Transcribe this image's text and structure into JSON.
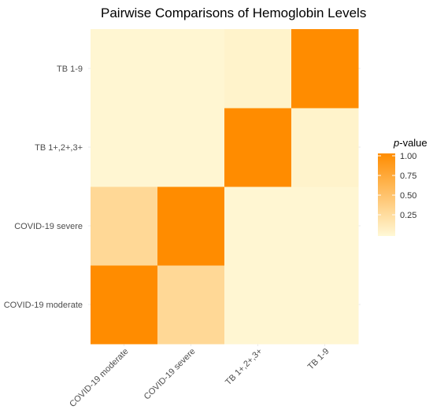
{
  "chart_data": {
    "type": "heatmap",
    "title": "Pairwise Comparisons of Hemoglobin Levels",
    "x_categories": [
      "COVID-19 moderate",
      "COVID-19 severe",
      "TB 1+,2+,3+",
      "TB 1-9"
    ],
    "y_categories": [
      "COVID-19 moderate",
      "COVID-19 severe",
      "TB 1+,2+,3+",
      "TB 1-9"
    ],
    "values": [
      [
        1.0,
        0.3,
        0.02,
        0.02
      ],
      [
        0.3,
        1.0,
        0.02,
        0.02
      ],
      [
        0.02,
        0.02,
        1.0,
        0.05
      ],
      [
        0.02,
        0.02,
        0.05,
        1.0
      ]
    ],
    "legend": {
      "title_italic": "p",
      "title_rest": "-value",
      "ticks": [
        1.0,
        0.75,
        0.5,
        0.25
      ],
      "tick_labels": [
        "1.00",
        "0.75",
        "0.50",
        "0.25"
      ],
      "range": [
        0,
        1
      ],
      "placement": "right"
    },
    "colors": {
      "low": "#FFF8D6",
      "high": "#FF8C00",
      "grid": "#EBEBEB"
    },
    "grid": true
  }
}
